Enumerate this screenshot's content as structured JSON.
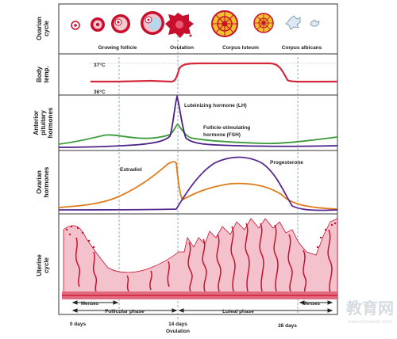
{
  "rows": {
    "ovarian_cycle": [
      "Ovarian",
      "cycle"
    ],
    "body_temp": [
      "Body",
      "temp."
    ],
    "pituitary": [
      "Anterior",
      "pituitary",
      "hormones"
    ],
    "ovarian_hormones": [
      "Ovarian",
      "hormones"
    ],
    "uterine": [
      "Uterine",
      "cycle"
    ]
  },
  "stages": {
    "growing_follicle": "Growing follicle",
    "ovulation": "Ovulation",
    "corpus_luteum": "Corpus luteum",
    "corpus_albicans": "Corpus albicans"
  },
  "temp": {
    "high": "37°C",
    "low": "36°C"
  },
  "hormones": {
    "lh": "Luteinizing hormone (LH)",
    "fsh_line1": "Follicle-stimulating",
    "fsh_line2": "hormone (FSH)",
    "estradiol": "Estradiol",
    "progesterone": "Progesterone"
  },
  "phases": {
    "menses_left": "Menses",
    "follicular": "Follicular phase",
    "luteal": "Luteal phase",
    "menses_right": "Menses"
  },
  "axis": {
    "day0": "0 days",
    "day14": "14 days",
    "ovulation": "Ovulation",
    "day28": "28 days"
  },
  "watermark": {
    "text": "教育网",
    "url": "www.chinaedu.com"
  },
  "colors": {
    "temp": "#d4293c",
    "lh": "#4b2088",
    "fsh": "#3a9a3a",
    "estradiol": "#e07b1a",
    "progesterone": "#5a2a90",
    "endometrium": "#f4c2cc",
    "vessel": "#c8102e"
  }
}
